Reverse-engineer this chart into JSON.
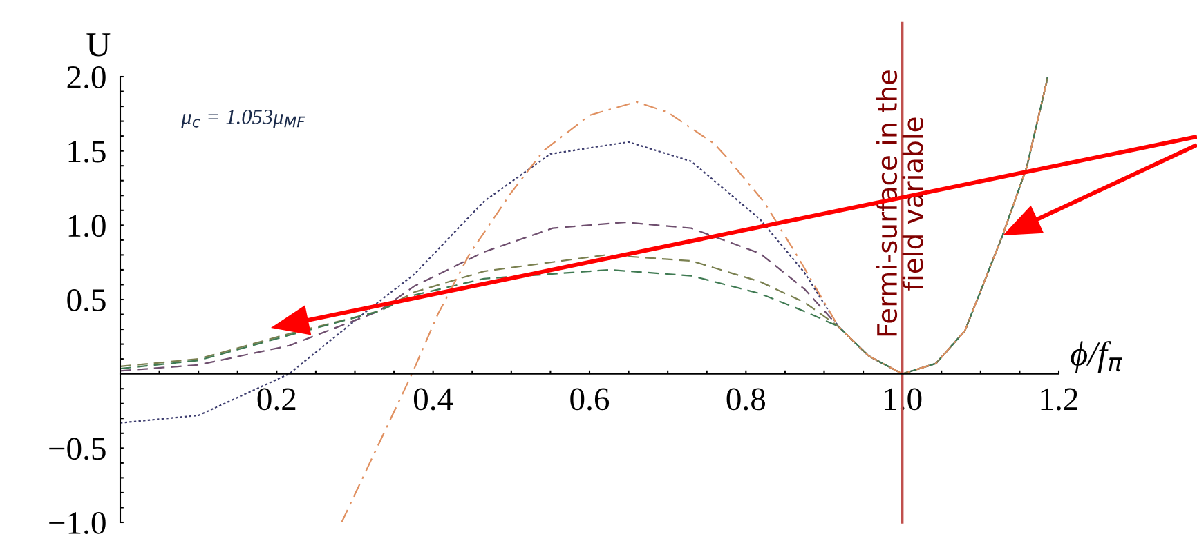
{
  "chart_data": {
    "type": "line",
    "xlabel": "ϕ/f$_{π}$",
    "ylabel": "U",
    "annotations": [
      "μ$_{c}$ = 1.053μ$_{MF}$"
    ],
    "xlim": [
      0,
      1.2
    ],
    "ylim": [
      -1.0,
      2.0
    ],
    "xticks": [
      {
        "value": 0.05,
        "label": null
      },
      {
        "value": 0.1,
        "label": null
      },
      {
        "value": 0.15,
        "label": null
      },
      {
        "value": 0.2,
        "label": "0.2"
      },
      {
        "value": 0.25,
        "label": null
      },
      {
        "value": 0.3,
        "label": null
      },
      {
        "value": 0.35,
        "label": null
      },
      {
        "value": 0.4,
        "label": "0.4"
      },
      {
        "value": 0.45,
        "label": null
      },
      {
        "value": 0.5,
        "label": null
      },
      {
        "value": 0.55,
        "label": null
      },
      {
        "value": 0.6,
        "label": "0.6"
      },
      {
        "value": 0.65,
        "label": null
      },
      {
        "value": 0.7,
        "label": null
      },
      {
        "value": 0.75,
        "label": null
      },
      {
        "value": 0.8,
        "label": "0.8"
      },
      {
        "value": 0.85,
        "label": null
      },
      {
        "value": 0.9,
        "label": null
      },
      {
        "value": 0.95,
        "label": null
      },
      {
        "value": 1.0,
        "label": "1.0"
      },
      {
        "value": 1.05,
        "label": null
      },
      {
        "value": 1.1,
        "label": null
      },
      {
        "value": 1.15,
        "label": null
      },
      {
        "value": 1.2,
        "label": "1.2"
      }
    ],
    "yticks": [
      {
        "value": -1.0,
        "label": "−1.0"
      },
      {
        "value": -0.9,
        "label": null
      },
      {
        "value": -0.8,
        "label": null
      },
      {
        "value": -0.7,
        "label": null
      },
      {
        "value": -0.6,
        "label": null
      },
      {
        "value": -0.5,
        "label": "−0.5"
      },
      {
        "value": -0.4,
        "label": null
      },
      {
        "value": -0.3,
        "label": null
      },
      {
        "value": -0.2,
        "label": null
      },
      {
        "value": -0.1,
        "label": null
      },
      {
        "value": 0.1,
        "label": null
      },
      {
        "value": 0.2,
        "label": null
      },
      {
        "value": 0.3,
        "label": null
      },
      {
        "value": 0.4,
        "label": null
      },
      {
        "value": 0.5,
        "label": "0.5"
      },
      {
        "value": 0.6,
        "label": null
      },
      {
        "value": 0.7,
        "label": null
      },
      {
        "value": 0.8,
        "label": null
      },
      {
        "value": 0.9,
        "label": null
      },
      {
        "value": 1.0,
        "label": "1.0"
      },
      {
        "value": 1.1,
        "label": null
      },
      {
        "value": 1.2,
        "label": null
      },
      {
        "value": 1.3,
        "label": null
      },
      {
        "value": 1.4,
        "label": null
      },
      {
        "value": 1.5,
        "label": "1.5"
      },
      {
        "value": 1.6,
        "label": null
      },
      {
        "value": 1.7,
        "label": null
      },
      {
        "value": 1.8,
        "label": null
      },
      {
        "value": 1.9,
        "label": null
      },
      {
        "value": 2.0,
        "label": "2.0"
      }
    ],
    "series": [
      {
        "color": "#3c3c6e",
        "line_style": "dotted",
        "x": [
          0,
          0.1,
          0.216,
          0.317,
          0.376,
          0.465,
          0.55,
          0.65,
          0.73,
          0.818,
          0.875,
          0.918,
          0.957,
          1.0,
          1.043,
          1.08,
          1.128,
          1.159,
          1.186
        ],
        "values": [
          -0.33,
          -0.28,
          0,
          0.43,
          0.67,
          1.16,
          1.48,
          1.56,
          1.43,
          1.04,
          0.68,
          0.32,
          0.12,
          0,
          0.07,
          0.29,
          0.93,
          1.39,
          2.0
        ]
      },
      {
        "color": "#6e4e6e",
        "line_style": "dashed",
        "x": [
          0,
          0.1,
          0.216,
          0.33,
          0.376,
          0.465,
          0.553,
          0.645,
          0.73,
          0.818,
          0.875,
          0.918,
          0.957,
          1.0,
          1.043,
          1.08,
          1.128,
          1.159,
          1.186
        ],
        "values": [
          0.02,
          0.06,
          0.19,
          0.42,
          0.59,
          0.82,
          0.98,
          1.02,
          0.98,
          0.81,
          0.57,
          0.32,
          0.12,
          0,
          0.07,
          0.29,
          0.93,
          1.39,
          2.0
        ]
      },
      {
        "color": "#7a8050",
        "line_style": "dashed",
        "x": [
          0,
          0.1,
          0.216,
          0.33,
          0.376,
          0.465,
          0.621,
          0.73,
          0.818,
          0.875,
          0.918,
          0.957,
          1.0,
          1.043,
          1.08,
          1.128,
          1.159,
          1.186
        ],
        "values": [
          0.05,
          0.1,
          0.27,
          0.42,
          0.55,
          0.69,
          0.8,
          0.76,
          0.62,
          0.48,
          0.32,
          0.12,
          0,
          0.07,
          0.29,
          0.93,
          1.39,
          2.0
        ]
      },
      {
        "color": "#3f7a52",
        "line_style": "dashed",
        "x": [
          0,
          0.1,
          0.216,
          0.33,
          0.376,
          0.465,
          0.626,
          0.73,
          0.818,
          0.875,
          0.918,
          0.957,
          1.0,
          1.043,
          1.08,
          1.128,
          1.159,
          1.186
        ],
        "values": [
          0.035,
          0.09,
          0.26,
          0.42,
          0.53,
          0.64,
          0.7,
          0.66,
          0.54,
          0.42,
          0.32,
          0.12,
          0,
          0.07,
          0.29,
          0.93,
          1.39,
          2.0
        ]
      },
      {
        "color": "#e09060",
        "line_style": "dashdot",
        "x": [
          0.283,
          0.373,
          0.406,
          0.447,
          0.5,
          0.541,
          0.6,
          0.66,
          0.7,
          0.759,
          0.775,
          0.824,
          0.866,
          0.918,
          0.957,
          1.0,
          1.043,
          1.08,
          1.128,
          1.159,
          1.186
        ],
        "values": [
          -1.0,
          0,
          0.4,
          0.81,
          1.22,
          1.5,
          1.74,
          1.83,
          1.76,
          1.55,
          1.46,
          1.15,
          0.79,
          0.32,
          0.12,
          0,
          0.07,
          0.29,
          0.93,
          1.39,
          2.0
        ]
      }
    ],
    "ref_lines": [
      {
        "axis": "x",
        "value": 1.0,
        "label": "Fermi-surface in the\nfield variable",
        "color": "#c0504d"
      }
    ],
    "legend": false,
    "grid": false,
    "marker": "none"
  }
}
